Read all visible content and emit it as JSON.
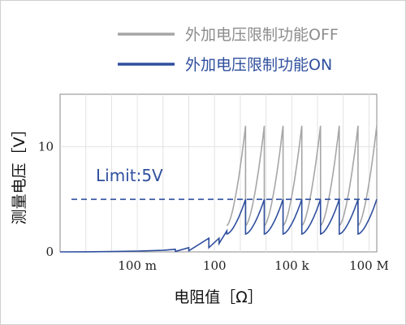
{
  "chart_data": {
    "type": "line",
    "xscale": "log",
    "xlabel": "电阻值［Ω］",
    "ylabel": "测量电压［V］",
    "x_ticks": [
      {
        "value": 0.1,
        "label": "100 m"
      },
      {
        "value": 100,
        "label": "100"
      },
      {
        "value": 100000,
        "label": "100 k"
      },
      {
        "value": 100000000,
        "label": "100 M"
      }
    ],
    "y_ticks": [
      {
        "value": 0,
        "label": "0"
      },
      {
        "value": 10,
        "label": "10"
      }
    ],
    "xlim": [
      0.0001,
      200000000
    ],
    "ylim": [
      0,
      15
    ],
    "grid": true,
    "legend_position": "top-right",
    "limit_line": {
      "value": 5,
      "label": "Limit:5V",
      "color": "#2f4f9e"
    },
    "series": [
      {
        "name": "外加电压限制功能OFF",
        "color": "#a6a6a6",
        "sawtooth": {
          "x_start": 300,
          "x_end": 200000000,
          "count": 8,
          "peak": 12,
          "reset": 2.5
        }
      },
      {
        "name": "外加电压限制功能ON",
        "color": "#2f4f9e",
        "sawtooth": {
          "x_start": 300,
          "x_end": 200000000,
          "count": 8,
          "peak": 5,
          "reset": 1.7
        },
        "low_points": [
          [
            0.0001,
            0
          ],
          [
            0.001,
            0.01
          ],
          [
            0.01,
            0.03
          ],
          [
            0.1,
            0.08
          ],
          [
            1,
            0.15
          ],
          [
            3,
            0.25
          ],
          [
            3.01,
            0.05
          ],
          [
            10,
            0.4
          ],
          [
            10.01,
            0.1
          ],
          [
            60,
            1.3
          ],
          [
            60.1,
            0.4
          ],
          [
            150,
            1.3
          ],
          [
            150.1,
            0.8
          ],
          [
            300,
            2.0
          ]
        ]
      }
    ]
  }
}
